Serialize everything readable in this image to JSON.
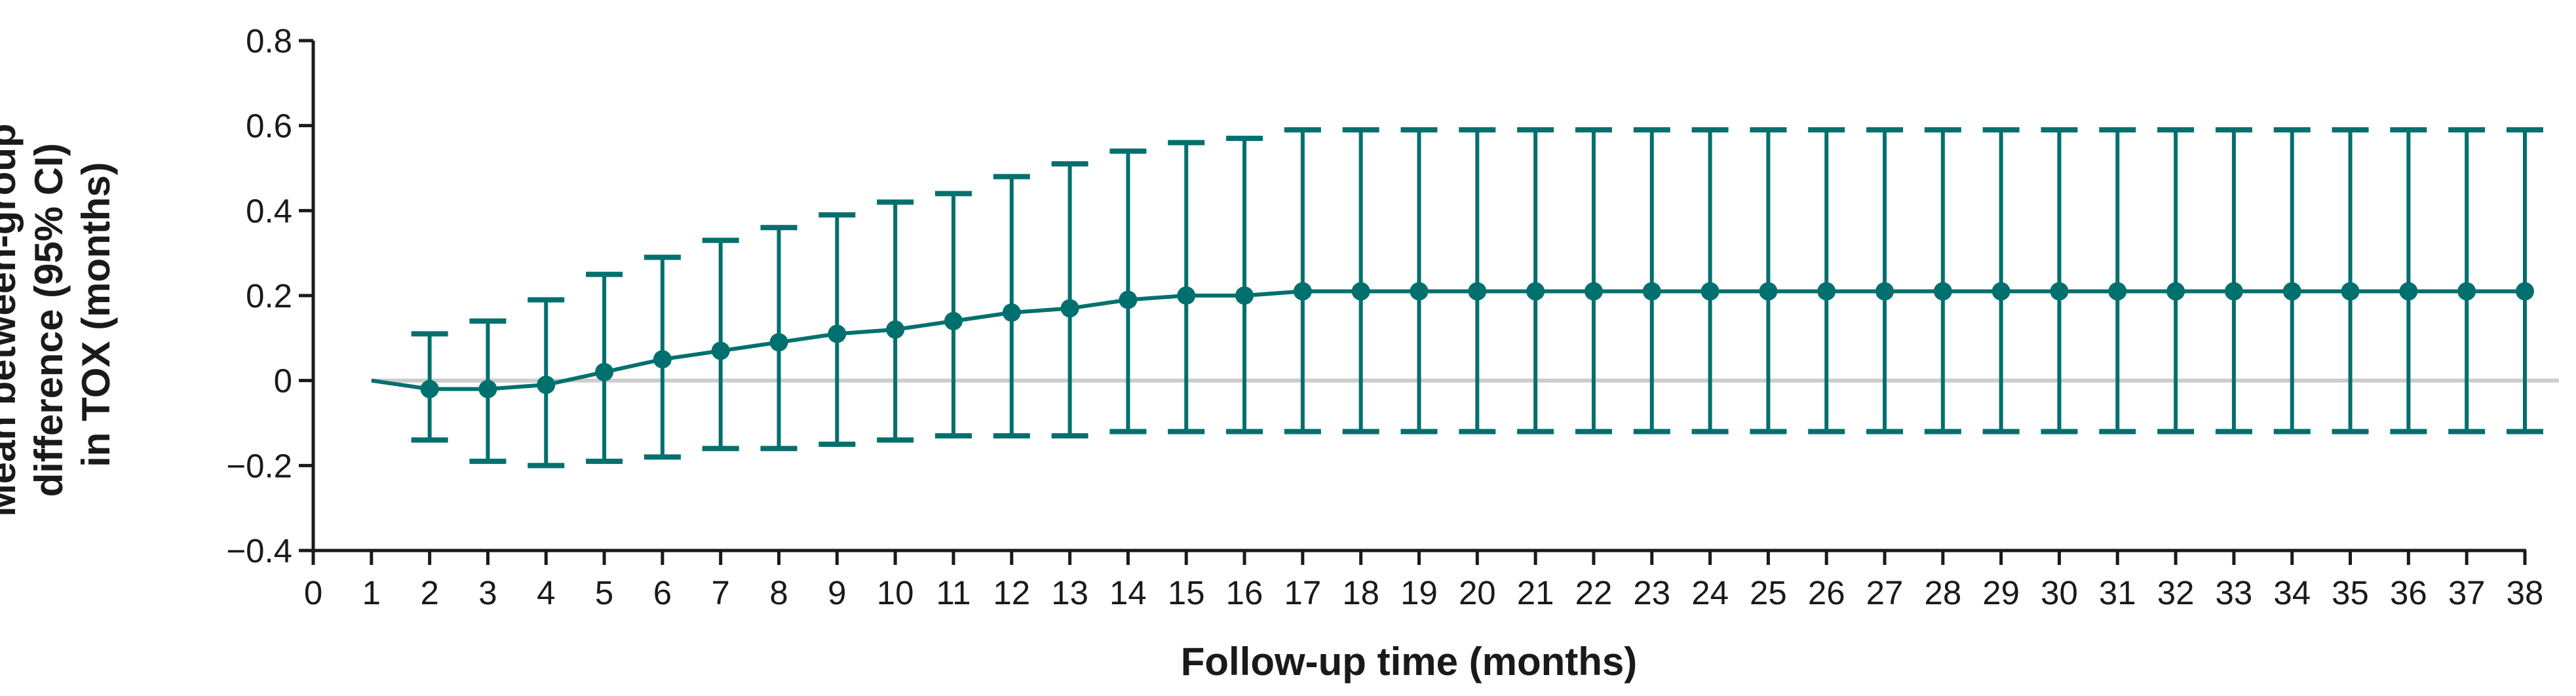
{
  "chart_data": {
    "type": "line",
    "title": "",
    "xlabel": "Follow-up time (months)",
    "ylabel_lines": [
      "Mean between-group",
      "difference (95% CI)",
      "in TOX (months)"
    ],
    "xlim": [
      0,
      38
    ],
    "ylim": [
      -0.4,
      0.8
    ],
    "x_ticks": [
      0,
      1,
      2,
      3,
      4,
      5,
      6,
      7,
      8,
      9,
      10,
      11,
      12,
      13,
      14,
      15,
      16,
      17,
      18,
      19,
      20,
      21,
      22,
      23,
      24,
      25,
      26,
      27,
      28,
      29,
      30,
      31,
      32,
      33,
      34,
      35,
      36,
      37,
      38
    ],
    "y_ticks": [
      {
        "value": -0.4,
        "label": "−0.4"
      },
      {
        "value": -0.2,
        "label": "−0.2"
      },
      {
        "value": 0,
        "label": "0"
      },
      {
        "value": 0.2,
        "label": "0.2"
      },
      {
        "value": 0.4,
        "label": "0.4"
      },
      {
        "value": 0.6,
        "label": "0.6"
      },
      {
        "value": 0.8,
        "label": "0.8"
      }
    ],
    "reference_line": 0,
    "series": [
      {
        "color": "#00706e",
        "line_start": {
          "x": 1,
          "y": 0
        },
        "x": [
          2,
          3,
          4,
          5,
          6,
          7,
          8,
          9,
          10,
          11,
          12,
          13,
          14,
          15,
          16,
          17,
          18,
          19,
          20,
          21,
          22,
          23,
          24,
          25,
          26,
          27,
          28,
          29,
          30,
          31,
          32,
          33,
          34,
          35,
          36,
          37,
          38
        ],
        "y": [
          -0.02,
          -0.02,
          -0.01,
          0.02,
          0.05,
          0.07,
          0.09,
          0.11,
          0.12,
          0.14,
          0.16,
          0.17,
          0.19,
          0.2,
          0.2,
          0.21,
          0.21,
          0.21,
          0.21,
          0.21,
          0.21,
          0.21,
          0.21,
          0.21,
          0.21,
          0.21,
          0.21,
          0.21,
          0.21,
          0.21,
          0.21,
          0.21,
          0.21,
          0.21,
          0.21,
          0.21,
          0.21
        ],
        "ci_lower": [
          -0.14,
          -0.19,
          -0.2,
          -0.19,
          -0.18,
          -0.16,
          -0.16,
          -0.15,
          -0.14,
          -0.13,
          -0.13,
          -0.13,
          -0.12,
          -0.12,
          -0.12,
          -0.12,
          -0.12,
          -0.12,
          -0.12,
          -0.12,
          -0.12,
          -0.12,
          -0.12,
          -0.12,
          -0.12,
          -0.12,
          -0.12,
          -0.12,
          -0.12,
          -0.12,
          -0.12,
          -0.12,
          -0.12,
          -0.12,
          -0.12,
          -0.12,
          -0.12
        ],
        "ci_upper": [
          0.11,
          0.14,
          0.19,
          0.25,
          0.29,
          0.33,
          0.36,
          0.39,
          0.42,
          0.44,
          0.48,
          0.51,
          0.54,
          0.56,
          0.57,
          0.59,
          0.59,
          0.59,
          0.59,
          0.59,
          0.59,
          0.59,
          0.59,
          0.59,
          0.59,
          0.59,
          0.59,
          0.59,
          0.59,
          0.59,
          0.59,
          0.59,
          0.59,
          0.59,
          0.59,
          0.59,
          0.59
        ]
      }
    ],
    "colors": {
      "series": "#00706e",
      "reference": "#cccccc",
      "axis": "#1a1a1a"
    },
    "grid": false,
    "legend": "none"
  }
}
